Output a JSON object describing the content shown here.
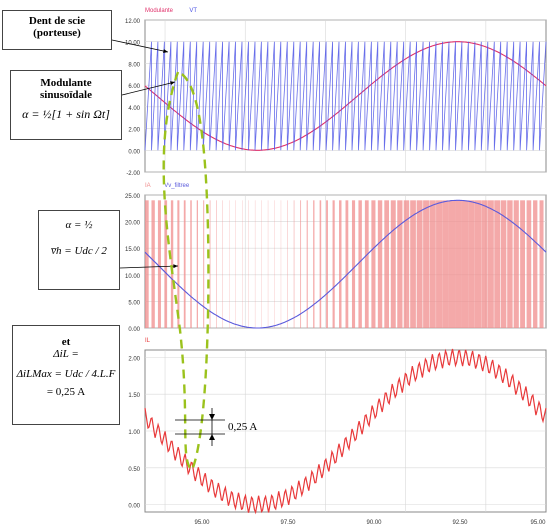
{
  "chart_data": [
    {
      "type": "line",
      "legend": [
        "Modulante",
        "VT"
      ],
      "series": [
        {
          "name": "Modulante",
          "color": "#e0306a",
          "shape": "sine",
          "amplitude": 5,
          "offset": 5,
          "peak_x": 92.5
        },
        {
          "name": "VT",
          "color": "#4d55e6",
          "shape": "sawtooth",
          "min": 0,
          "max": 10,
          "period": 0.25
        }
      ],
      "yticks": [
        "12.00",
        "10.00",
        "8.00",
        "6.00",
        "4.00",
        "2.00",
        "0.00",
        "-2.00"
      ],
      "ylim": [
        -2,
        12
      ],
      "xlim": [
        92.5,
        95
      ],
      "grid": true
    },
    {
      "type": "line",
      "legend": [
        "IA",
        "Vv_filtree"
      ],
      "series": [
        {
          "name": "IA",
          "color": "#f08c8c",
          "shape": "pwm",
          "min": 0,
          "max": 24
        },
        {
          "name": "Vv_filtree",
          "color": "#5a5adc",
          "shape": "sine",
          "amplitude": 12,
          "offset": 12,
          "peak_x": 92.5
        }
      ],
      "yticks": [
        "25.00",
        "20.00",
        "15.00",
        "10.00",
        "5.00",
        "0.00"
      ],
      "ylim": [
        0,
        25
      ],
      "xlim": [
        92.5,
        95
      ],
      "grid": true
    },
    {
      "type": "line",
      "legend": [
        "IL"
      ],
      "series": [
        {
          "name": "IL",
          "color": "#e8393a",
          "shape": "sine+ripple",
          "amplitude": 1,
          "offset": 1,
          "ripple_pp": 0.25,
          "peak_x": 92.5
        }
      ],
      "yticks": [
        "2.00",
        "1.50",
        "1.00",
        "0.50",
        "0.00"
      ],
      "ylim": [
        -0.1,
        2.1
      ],
      "xlim": [
        92.5,
        95
      ],
      "grid": true
    }
  ],
  "xticks": [
    "95.00",
    "97.50",
    "90.00",
    "92.50",
    "95.00"
  ],
  "annotations": {
    "dent_de_scie": "Dent de scie",
    "dent_de_scie_2": "(porteuse)",
    "modulante": "Modulante",
    "modulante_2": "sinusoïdale",
    "alpha_eq": "α = ½",
    "vh_eq": "v̅h = Udc / 2",
    "et": "et",
    "delta_il": "ΔiL =",
    "delta_il_max": "ΔiLMax = Udc / 4.L.F",
    "delta_value": "= 0,25 A",
    "ripple_label": "0,25 A"
  },
  "colors": {
    "dashed_ellipse": "#9bc21c",
    "grid": "#d8d8d8"
  }
}
